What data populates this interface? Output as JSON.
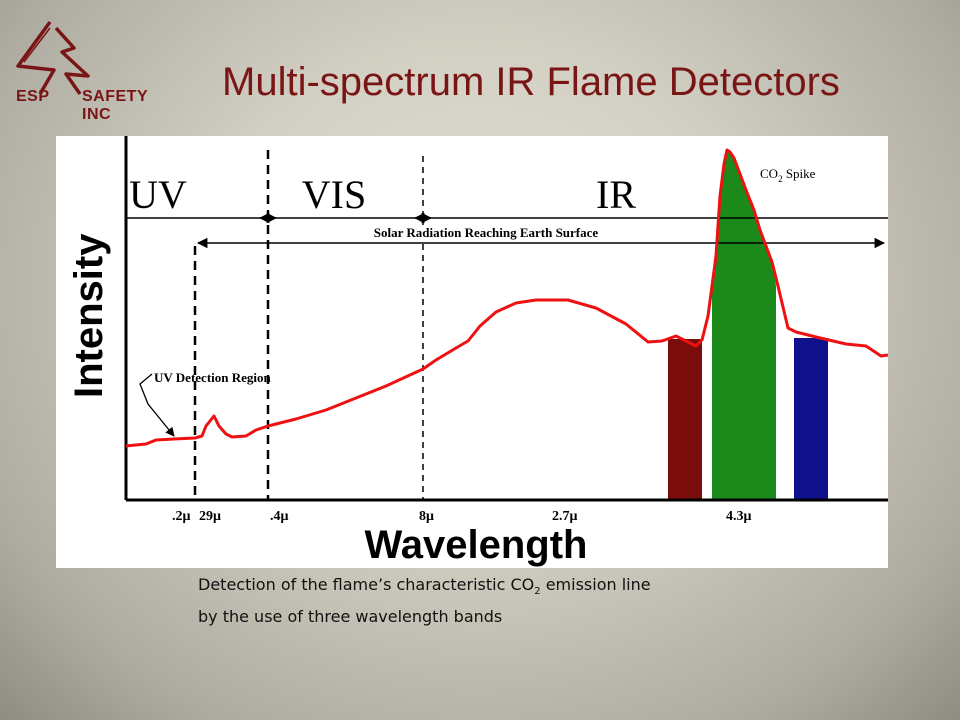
{
  "logo": {
    "left_text": "ESP",
    "right_text": "SAFETY INC"
  },
  "title": "Multi-spectrum IR Flame Detectors",
  "diagram": {
    "regions": {
      "uv": "UV",
      "vis": "VIS",
      "ir": "IR"
    },
    "solar_label": "Solar Radiation Reaching Earth Surface",
    "co2_label_pre": "CO",
    "co2_label_sub": "2",
    "co2_label_post": " Spike",
    "uv_detection_label": "UV Detection Region",
    "y_axis_label": "Intensity",
    "x_axis_label": "Wavelength",
    "ticks": [
      ".2μ",
      "29μ",
      ".4μ",
      "8μ",
      "2.7μ",
      "4.3μ"
    ],
    "band_colors": [
      "#7a0c0c",
      "#1b8a1b",
      "#10108c"
    ],
    "curve_color": "#ee1111"
  },
  "caption": {
    "line1_pre": "Detection of the flame’s characteristic CO",
    "line1_sub": "2",
    "line1_post": " emission line",
    "line2": "by the use of three wavelength bands"
  }
}
